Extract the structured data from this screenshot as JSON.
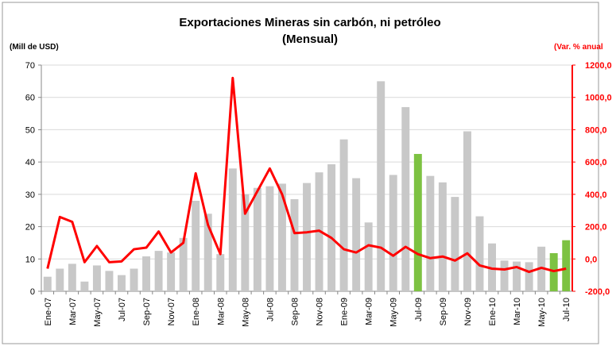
{
  "chart_data": {
    "type": "bar_line",
    "title": "Exportaciones Mineras sin carbón, ni petróleo",
    "subtitle": "(Mensual)",
    "y_label": "(Mill de USD)",
    "y2_label": "(Var. % anual",
    "categories": [
      "Ene-07",
      null,
      "Mar-07",
      null,
      "May-07",
      null,
      "Jul-07",
      null,
      "Sep-07",
      null,
      "Nov-07",
      null,
      "Ene-08",
      null,
      "Mar-08",
      null,
      "May-08",
      null,
      "Jul-08",
      null,
      "Sep-08",
      null,
      "Nov-08",
      null,
      "Ene-09",
      null,
      "Mar-09",
      null,
      "May-09",
      null,
      "Jul-09",
      null,
      "Sep-09",
      null,
      "Nov-09",
      null,
      "Ene-10",
      null,
      "Mar-10",
      null,
      "May-10",
      null,
      "Jul-10"
    ],
    "series": [
      {
        "type": "bar",
        "color": "#c8c8c8",
        "colors": [
          "#c8c8c8",
          "#c8c8c8",
          "#c8c8c8",
          "#c8c8c8",
          "#c8c8c8",
          "#c8c8c8",
          "#c8c8c8",
          "#c8c8c8",
          "#c8c8c8",
          "#c8c8c8",
          "#c8c8c8",
          "#c8c8c8",
          "#c8c8c8",
          "#c8c8c8",
          "#c8c8c8",
          "#c8c8c8",
          "#c8c8c8",
          "#c8c8c8",
          "#c8c8c8",
          "#c8c8c8",
          "#c8c8c8",
          "#c8c8c8",
          "#c8c8c8",
          "#c8c8c8",
          "#c8c8c8",
          "#c8c8c8",
          "#c8c8c8",
          "#c8c8c8",
          "#c8c8c8",
          "#c8c8c8",
          "#7dc242",
          "#c8c8c8",
          "#c8c8c8",
          "#c8c8c8",
          "#c8c8c8",
          "#c8c8c8",
          "#c8c8c8",
          "#c8c8c8",
          "#c8c8c8",
          "#c8c8c8",
          "#c8c8c8",
          "#7dc242",
          "#7dc242"
        ],
        "values": [
          4.5,
          7,
          8.5,
          3,
          8,
          6.3,
          5,
          7,
          10.8,
          12.5,
          12,
          16.5,
          28,
          24,
          11.5,
          38,
          30,
          32,
          32.5,
          33.3,
          28.5,
          33.5,
          36.8,
          39.3,
          47,
          35,
          21.3,
          65,
          36,
          57,
          42.5,
          35.7,
          33.7,
          29.2,
          49.5,
          23.2,
          14.8,
          9.5,
          9.2,
          9,
          13.8,
          11.8,
          15.8
        ]
      },
      {
        "type": "line",
        "axis": "y2",
        "color": "#ff0000",
        "values": [
          -60,
          260,
          230,
          -20,
          80,
          -20,
          -15,
          60,
          70,
          170,
          40,
          100,
          530,
          210,
          30,
          1120,
          280,
          420,
          560,
          400,
          160,
          165,
          175,
          130,
          60,
          40,
          85,
          70,
          20,
          75,
          30,
          5,
          15,
          -10,
          35,
          -40,
          -60,
          -65,
          -50,
          -80,
          -55,
          -75,
          -60
        ]
      }
    ],
    "ylim": [
      0,
      70
    ],
    "yticks": [
      0,
      10,
      20,
      30,
      40,
      50,
      60,
      70
    ],
    "y2lim": [
      -200,
      1200
    ],
    "y2ticks": [
      {
        "value": -200,
        "label": "-200,0"
      },
      {
        "value": 0,
        "label": "0,0"
      },
      {
        "value": 200,
        "label": "200,0"
      },
      {
        "value": 400,
        "label": "400,0"
      },
      {
        "value": 600,
        "label": "600,0"
      },
      {
        "value": 800,
        "label": "800,0"
      },
      {
        "value": 1000,
        "label": "1000,0"
      },
      {
        "value": 1200,
        "label": "1200,0"
      }
    ],
    "grid": true
  }
}
